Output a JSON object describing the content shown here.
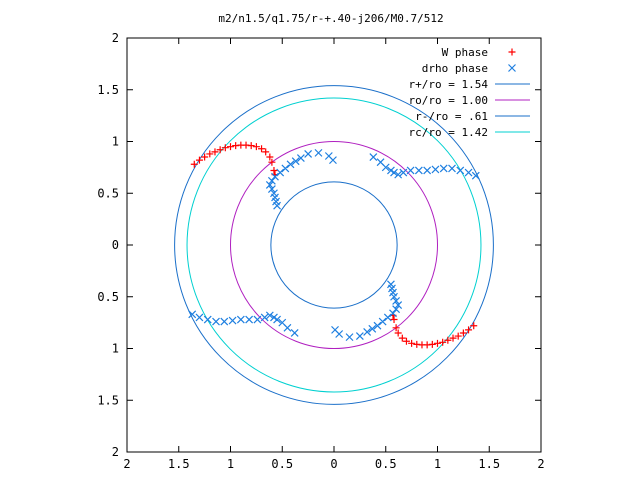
{
  "chart_data": {
    "type": "scatter",
    "title": "m2/n1.5/q1.75/r-+.40-j206/M0.7/512",
    "xlabel": "",
    "ylabel": "",
    "xlim": [
      -2,
      2
    ],
    "ylim": [
      -2,
      2
    ],
    "x_ticks": [
      "2",
      "1.5",
      "1",
      "0.5",
      "0",
      "0.5",
      "1",
      "1.5",
      "2"
    ],
    "y_ticks": [
      "2",
      "1.5",
      "1",
      "0.5",
      "0",
      "0.5",
      "1",
      "1.5",
      "2"
    ],
    "grid": false,
    "legend_position": "top-right",
    "colors": {
      "w_phase": "#ff0000",
      "drho_phase": "#1e7fe0",
      "r_plus": "#1a6fc9",
      "r_zero": "#b020c0",
      "r_minus": "#1a6fc9",
      "r_c": "#00d0d0"
    },
    "series": [
      {
        "name": "W phase",
        "kind": "points",
        "marker": "+",
        "color": "#ff0000",
        "x": [
          -1.35,
          -1.3,
          -1.25,
          -1.2,
          -1.15,
          -1.1,
          -1.05,
          -1.0,
          -0.95,
          -0.9,
          -0.85,
          -0.8,
          -0.75,
          -0.7,
          -0.66,
          -0.62,
          -0.6,
          -0.58,
          -0.57,
          1.35,
          1.3,
          1.25,
          1.2,
          1.15,
          1.1,
          1.05,
          1.0,
          0.95,
          0.9,
          0.85,
          0.8,
          0.75,
          0.7,
          0.66,
          0.62,
          0.6,
          0.58,
          0.57
        ],
        "y": [
          0.78,
          0.82,
          0.85,
          0.88,
          0.9,
          0.92,
          0.94,
          0.95,
          0.96,
          0.965,
          0.965,
          0.96,
          0.95,
          0.93,
          0.9,
          0.85,
          0.8,
          0.72,
          0.68,
          -0.78,
          -0.82,
          -0.85,
          -0.88,
          -0.9,
          -0.92,
          -0.94,
          -0.95,
          -0.96,
          -0.965,
          -0.965,
          -0.96,
          -0.95,
          -0.93,
          -0.9,
          -0.85,
          -0.8,
          -0.72,
          -0.68
        ]
      },
      {
        "name": "drho phase",
        "kind": "points",
        "marker": "x",
        "color": "#1e7fe0",
        "x": [
          1.37,
          1.3,
          1.22,
          1.14,
          1.06,
          0.98,
          0.9,
          0.82,
          0.74,
          0.67,
          0.62,
          0.58,
          0.55,
          0.5,
          0.45,
          0.38,
          -0.55,
          -0.56,
          -0.57,
          -0.58,
          -0.6,
          -0.62,
          -0.6,
          -0.57,
          -0.52,
          -0.47,
          -0.42,
          -0.37,
          -0.32,
          -0.25,
          -0.15,
          -0.05,
          -0.01,
          -1.37,
          -1.3,
          -1.22,
          -1.14,
          -1.06,
          -0.98,
          -0.9,
          -0.82,
          -0.74,
          -0.67,
          -0.62,
          -0.58,
          -0.55,
          -0.5,
          -0.45,
          -0.38,
          0.55,
          0.56,
          0.57,
          0.58,
          0.6,
          0.62,
          0.6,
          0.57,
          0.52,
          0.47,
          0.42,
          0.37,
          0.32,
          0.25,
          0.15,
          0.05,
          0.01
        ],
        "y": [
          0.67,
          0.7,
          0.72,
          0.74,
          0.74,
          0.73,
          0.72,
          0.72,
          0.72,
          0.7,
          0.68,
          0.7,
          0.72,
          0.75,
          0.8,
          0.85,
          0.38,
          0.42,
          0.46,
          0.5,
          0.54,
          0.58,
          0.62,
          0.66,
          0.7,
          0.74,
          0.78,
          0.81,
          0.84,
          0.88,
          0.89,
          0.86,
          0.82,
          -0.67,
          -0.7,
          -0.72,
          -0.74,
          -0.74,
          -0.73,
          -0.72,
          -0.72,
          -0.72,
          -0.7,
          -0.68,
          -0.7,
          -0.72,
          -0.75,
          -0.8,
          -0.85,
          -0.38,
          -0.42,
          -0.46,
          -0.5,
          -0.54,
          -0.58,
          -0.62,
          -0.66,
          -0.7,
          -0.74,
          -0.78,
          -0.81,
          -0.84,
          -0.88,
          -0.89,
          -0.86,
          -0.82
        ]
      },
      {
        "name": "r+/ro = 1.54",
        "kind": "circle",
        "radius": 1.54,
        "color": "#1a6fc9"
      },
      {
        "name": "ro/ro = 1.00",
        "kind": "circle",
        "radius": 1.0,
        "color": "#b020c0"
      },
      {
        "name": "r-/ro = .61",
        "kind": "circle",
        "radius": 0.61,
        "color": "#1a6fc9"
      },
      {
        "name": "rc/ro = 1.42",
        "kind": "circle",
        "radius": 1.42,
        "color": "#00d0d0"
      }
    ]
  }
}
